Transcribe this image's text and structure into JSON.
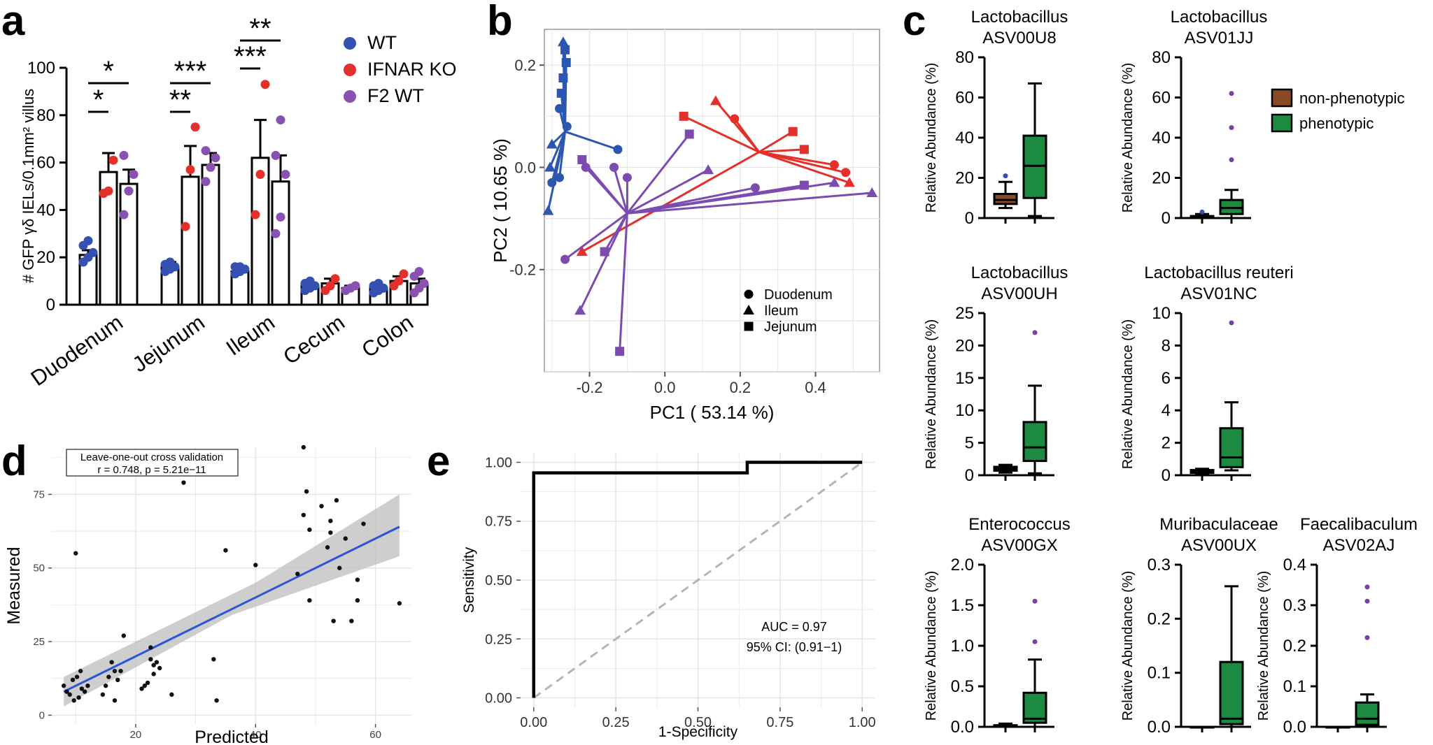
{
  "colors": {
    "wt": "#3451b2",
    "ko": "#e4302b",
    "f2": "#8a52b0",
    "duo": "#2c57b0",
    "red": "#e4302b",
    "pur": "#7b4bb0",
    "brown": "#8b4a26",
    "green": "#1d8a42",
    "blue": "#2b55d6",
    "ci_band": "#bdbdbd",
    "black": "#000000",
    "grid": "#e6e6e6"
  },
  "panels": {
    "a": "a",
    "b": "b",
    "c": "c",
    "d": "d",
    "e": "e"
  },
  "chart_data": [
    {
      "id": "a",
      "type": "bar",
      "ylabel": "# GFP γδ IELs/0.1mm² villus",
      "ylim": [
        0,
        100
      ],
      "yticks": [
        0,
        20,
        40,
        60,
        80,
        100
      ],
      "categories": [
        "Duodenum",
        "Jejunum",
        "Ileum",
        "Cecum",
        "Colon"
      ],
      "series": [
        {
          "name": "WT",
          "color_key": "wt",
          "values": [
            21,
            16,
            14,
            8,
            7
          ],
          "err": [
            2,
            2,
            1,
            1,
            1
          ],
          "points": [
            [
              18,
              20,
              22,
              25,
              27
            ],
            [
              14,
              15,
              16,
              17,
              18
            ],
            [
              13,
              14,
              15,
              16,
              16
            ],
            [
              6,
              7,
              8,
              9,
              10
            ],
            [
              5,
              6,
              7,
              8,
              9
            ]
          ]
        },
        {
          "name": "IFNAR KO",
          "color_key": "ko",
          "values": [
            56,
            54,
            62,
            9,
            10
          ],
          "err": [
            8,
            13,
            16,
            2,
            2
          ],
          "points": [
            [
              47,
              48,
              61
            ],
            [
              33,
              57,
              75
            ],
            [
              38,
              55,
              93
            ],
            [
              6,
              8,
              11
            ],
            [
              8,
              10,
              13
            ]
          ]
        },
        {
          "name": "F2 WT",
          "color_key": "f2",
          "values": [
            51,
            59,
            52,
            7,
            9
          ],
          "err": [
            6,
            5,
            11,
            1,
            2
          ],
          "points": [
            [
              38,
              48,
              55,
              63
            ],
            [
              52,
              58,
              62,
              65
            ],
            [
              30,
              37,
              55,
              63,
              78
            ],
            [
              6,
              7,
              8
            ],
            [
              5,
              7,
              9,
              12,
              14
            ]
          ]
        }
      ],
      "sig": [
        {
          "cat": 0,
          "to": 2,
          "text": "*",
          "level": 1
        },
        {
          "cat": 0,
          "to": 1,
          "text": "*",
          "level": 0
        },
        {
          "cat": 1,
          "to": 2,
          "text": "***",
          "level": 1
        },
        {
          "cat": 1,
          "to": 1,
          "text": "**",
          "level": 0
        },
        {
          "cat": 2,
          "to": 2,
          "text": "**",
          "level": 1
        },
        {
          "cat": 2,
          "to": 1,
          "text": "***",
          "level": 0
        }
      ]
    },
    {
      "id": "b",
      "type": "scatter",
      "xlabel": "PC1 ( 53.14 %)",
      "ylabel": "PC2 ( 10.65 %)",
      "xlim": [
        -0.32,
        0.57
      ],
      "ylim": [
        -0.4,
        0.27
      ],
      "xticks": [
        -0.2,
        0.0,
        0.2,
        0.4
      ],
      "yticks": [
        -0.2,
        0.0,
        0.2
      ],
      "legend": [
        "Duodenum",
        "Ileum",
        "Jejunum"
      ],
      "groups": [
        {
          "color_key": "duo",
          "centroid": [
            -0.265,
            0.07
          ],
          "points": [
            [
              -0.27,
              0.245,
              "t"
            ],
            [
              -0.265,
              0.23,
              "s"
            ],
            [
              -0.262,
              0.205,
              "s"
            ],
            [
              -0.27,
              0.175,
              "s"
            ],
            [
              -0.275,
              0.145,
              "s"
            ],
            [
              -0.26,
              0.08,
              "c"
            ],
            [
              -0.28,
              0.115,
              "c"
            ],
            [
              -0.3,
              0.045,
              "t"
            ],
            [
              -0.305,
              0.0,
              "t"
            ],
            [
              -0.31,
              -0.085,
              "t"
            ],
            [
              -0.3,
              -0.03,
              "c"
            ],
            [
              -0.28,
              -0.02,
              "c"
            ],
            [
              -0.125,
              0.035,
              "c"
            ]
          ]
        },
        {
          "color_key": "red",
          "centroid": [
            0.25,
            0.03
          ],
          "points": [
            [
              0.135,
              0.13,
              "t"
            ],
            [
              0.185,
              0.095,
              "c"
            ],
            [
              0.05,
              0.1,
              "s"
            ],
            [
              0.34,
              0.07,
              "s"
            ],
            [
              0.37,
              0.035,
              "s"
            ],
            [
              0.45,
              0.005,
              "c"
            ],
            [
              0.48,
              -0.01,
              "c"
            ],
            [
              0.49,
              -0.03,
              "t"
            ],
            [
              -0.22,
              -0.165,
              "t"
            ]
          ]
        },
        {
          "color_key": "pur",
          "centroid": [
            -0.1,
            -0.09
          ],
          "points": [
            [
              -0.22,
              0.015,
              "s"
            ],
            [
              -0.21,
              0.0,
              "c"
            ],
            [
              -0.135,
              0.0,
              "c"
            ],
            [
              -0.1,
              -0.02,
              "c"
            ],
            [
              -0.265,
              -0.18,
              "c"
            ],
            [
              -0.225,
              -0.28,
              "t"
            ],
            [
              -0.16,
              -0.165,
              "s"
            ],
            [
              -0.12,
              -0.36,
              "s"
            ],
            [
              0.065,
              0.065,
              "s"
            ],
            [
              0.115,
              -0.005,
              "t"
            ],
            [
              0.24,
              -0.04,
              "c"
            ],
            [
              0.37,
              -0.035,
              "s"
            ],
            [
              0.45,
              -0.03,
              "t"
            ],
            [
              0.55,
              -0.05,
              "t"
            ]
          ]
        }
      ]
    },
    {
      "id": "c",
      "type": "boxplot",
      "ylabel": "Relative Abundance (%)",
      "legend": [
        "non-phenotypic",
        "phenotypic"
      ],
      "subplots": [
        {
          "title1": "Lactobacillus",
          "title2": "ASV00U8",
          "ymax": 80,
          "yticks": [
            0,
            20,
            40,
            60,
            80
          ],
          "boxes": [
            {
              "color_key": "brown",
              "min": 5,
              "q1": 7,
              "med": 9,
              "q3": 12,
              "max": 18,
              "out": [
                21
              ]
            },
            {
              "color_key": "green",
              "min": 1,
              "q1": 10,
              "med": 26,
              "q3": 41,
              "max": 67,
              "out": []
            }
          ]
        },
        {
          "title1": "Lactobacillus",
          "title2": "ASV01JJ",
          "ymax": 80,
          "yticks": [
            0,
            20,
            40,
            60,
            80
          ],
          "boxes": [
            {
              "color_key": "brown",
              "min": 0,
              "q1": 0.2,
              "med": 0.5,
              "q3": 1,
              "max": 2,
              "out": [
                3
              ]
            },
            {
              "color_key": "green",
              "min": 0,
              "q1": 2,
              "med": 5,
              "q3": 9,
              "max": 14,
              "out": [
                29,
                45,
                62
              ]
            }
          ]
        },
        {
          "title1": "Lactobacillus",
          "title2": "ASV00UH",
          "ymax": 25,
          "yticks": [
            0,
            5,
            10,
            15,
            20,
            25
          ],
          "boxes": [
            {
              "color_key": "brown",
              "min": 0.4,
              "q1": 0.7,
              "med": 1,
              "q3": 1.3,
              "max": 1.6,
              "out": []
            },
            {
              "color_key": "green",
              "min": 0.3,
              "q1": 2.2,
              "med": 4.3,
              "q3": 8.2,
              "max": 13.8,
              "out": [
                22
              ]
            }
          ]
        },
        {
          "title1": "Lactobacillus reuteri",
          "title2": "ASV01NC",
          "ymax": 10,
          "yticks": [
            0,
            2,
            4,
            6,
            8,
            10
          ],
          "boxes": [
            {
              "color_key": "brown",
              "min": 0.05,
              "q1": 0.15,
              "med": 0.25,
              "q3": 0.32,
              "max": 0.4,
              "out": []
            },
            {
              "color_key": "green",
              "min": 0.3,
              "q1": 0.5,
              "med": 1.1,
              "q3": 2.9,
              "max": 4.5,
              "out": [
                9.4
              ]
            }
          ]
        },
        {
          "title1": "Enterococcus",
          "title2": "ASV00GX",
          "ymax": 2.0,
          "yticks": [
            0.0,
            0.5,
            1.0,
            1.5,
            2.0
          ],
          "boxes": [
            {
              "color_key": "brown",
              "min": 0,
              "q1": 0.005,
              "med": 0.01,
              "q3": 0.02,
              "max": 0.04,
              "out": []
            },
            {
              "color_key": "green",
              "min": 0,
              "q1": 0.05,
              "med": 0.1,
              "q3": 0.42,
              "max": 0.83,
              "out": [
                1.05,
                1.55
              ]
            }
          ]
        },
        {
          "title1": "Muribaculaceae",
          "title2": "ASV00UX",
          "ymax": 0.3,
          "yticks": [
            0.0,
            0.1,
            0.2,
            0.3
          ],
          "boxes": [
            {
              "color_key": "brown",
              "min": 0,
              "q1": 0,
              "med": 0,
              "q3": 0,
              "max": 0,
              "out": []
            },
            {
              "color_key": "green",
              "min": 0,
              "q1": 0.005,
              "med": 0.015,
              "q3": 0.12,
              "max": 0.26,
              "out": []
            }
          ]
        },
        {
          "title1": "Faecalibaculum",
          "title2": "ASV02AJ",
          "ymax": 0.4,
          "yticks": [
            0.0,
            0.1,
            0.2,
            0.3,
            0.4
          ],
          "boxes": [
            {
              "color_key": "brown",
              "min": 0,
              "q1": 0,
              "med": 0,
              "q3": 0,
              "max": 0,
              "out": []
            },
            {
              "color_key": "green",
              "min": 0,
              "q1": 0.005,
              "med": 0.02,
              "q3": 0.06,
              "max": 0.08,
              "out": [
                0.22,
                0.31,
                0.345
              ]
            }
          ]
        }
      ]
    },
    {
      "id": "d",
      "type": "scatter",
      "xlabel": "Predicted",
      "ylabel": "Measured",
      "xlim": [
        6,
        66
      ],
      "ylim": [
        -3,
        91
      ],
      "xticks": [
        20,
        40,
        60
      ],
      "yticks": [
        0,
        25,
        50,
        75
      ],
      "annotation1": "Leave-one-out cross validation",
      "annotation2": "r = 0.748, p = 5.21e−11",
      "fit": {
        "x0": 8,
        "y0": 8,
        "x1": 64,
        "y1": 64
      },
      "points": [
        [
          8,
          10
        ],
        [
          8.5,
          8
        ],
        [
          9,
          7
        ],
        [
          9.5,
          12
        ],
        [
          9.7,
          5
        ],
        [
          10,
          55
        ],
        [
          10.2,
          13
        ],
        [
          10.5,
          6
        ],
        [
          10.8,
          15
        ],
        [
          11,
          9
        ],
        [
          11.5,
          8
        ],
        [
          12,
          10
        ],
        [
          14.5,
          7
        ],
        [
          15,
          10
        ],
        [
          15.5,
          13
        ],
        [
          16,
          18
        ],
        [
          16.5,
          5
        ],
        [
          16.5,
          15
        ],
        [
          17,
          12
        ],
        [
          17.5,
          15
        ],
        [
          18,
          27
        ],
        [
          21,
          9
        ],
        [
          21.5,
          10
        ],
        [
          22,
          11
        ],
        [
          22.5,
          19
        ],
        [
          22.5,
          23
        ],
        [
          23,
          14
        ],
        [
          23,
          17
        ],
        [
          23.5,
          18
        ],
        [
          24,
          16
        ],
        [
          26,
          7
        ],
        [
          28,
          79
        ],
        [
          33,
          19
        ],
        [
          33.5,
          5
        ],
        [
          35,
          56
        ],
        [
          40,
          51
        ],
        [
          47,
          48
        ],
        [
          48,
          91
        ],
        [
          48,
          68
        ],
        [
          48.5,
          76
        ],
        [
          49,
          39
        ],
        [
          49,
          63
        ],
        [
          51,
          71
        ],
        [
          52,
          57
        ],
        [
          52.5,
          66
        ],
        [
          52.5,
          62
        ],
        [
          53,
          32
        ],
        [
          53.5,
          73
        ],
        [
          54,
          50
        ],
        [
          55,
          60
        ],
        [
          56,
          32
        ],
        [
          57,
          39
        ],
        [
          57,
          46
        ],
        [
          58,
          65
        ],
        [
          64,
          38
        ]
      ]
    },
    {
      "id": "e",
      "type": "line",
      "xlabel": "1-Specificity",
      "ylabel": "Sensitivity",
      "xlim": [
        -0.04,
        1.04
      ],
      "ylim": [
        -0.04,
        1.04
      ],
      "xticks": [
        "0.00",
        "0.25",
        "0.50",
        "0.75",
        "1.00"
      ],
      "yticks": [
        "0.00",
        "0.25",
        "0.50",
        "0.75",
        "1.00"
      ],
      "auc": "AUC = 0.97",
      "ci": "95% CI: (0.91−1)",
      "roc": [
        [
          0,
          0
        ],
        [
          0,
          0.955
        ],
        [
          0.65,
          0.955
        ],
        [
          0.65,
          1
        ],
        [
          1,
          1
        ]
      ]
    }
  ]
}
